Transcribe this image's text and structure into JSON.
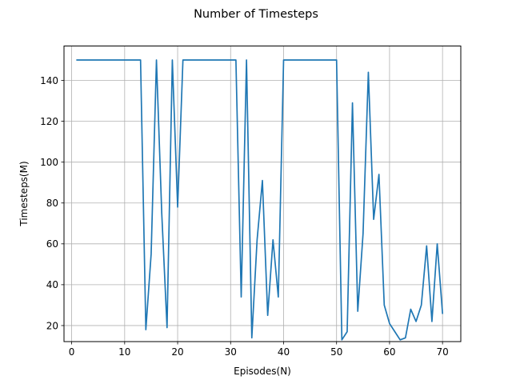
{
  "chart_data": {
    "type": "line",
    "title": "Number of Timesteps",
    "xlabel": "Episodes(N)",
    "ylabel": "Timesteps(M)",
    "xlim": [
      -1.45,
      73.45
    ],
    "ylim": [
      12.15,
      156.85
    ],
    "xticks": [
      0,
      10,
      20,
      30,
      40,
      50,
      60,
      70
    ],
    "yticks": [
      20,
      40,
      60,
      80,
      100,
      120,
      140
    ],
    "grid": true,
    "line_color": "#1f77b4",
    "series": [
      {
        "x": [
          1,
          2,
          3,
          4,
          5,
          6,
          7,
          8,
          9,
          10,
          11,
          12,
          13,
          14,
          15,
          16,
          17,
          18,
          19,
          20,
          21,
          22,
          23,
          24,
          25,
          26,
          27,
          28,
          29,
          30,
          31,
          32,
          33,
          34,
          35,
          36,
          37,
          38,
          39,
          40,
          41,
          42,
          43,
          44,
          45,
          46,
          47,
          48,
          49,
          50,
          51,
          52,
          53,
          54,
          55,
          56,
          57,
          58,
          59,
          60,
          61,
          62,
          63,
          64,
          65,
          66,
          67,
          68,
          69,
          70
        ],
        "values": [
          150,
          150,
          150,
          150,
          150,
          150,
          150,
          150,
          150,
          150,
          150,
          150,
          150,
          18,
          55,
          150,
          75,
          19,
          150,
          78,
          150,
          150,
          150,
          150,
          150,
          150,
          150,
          150,
          150,
          150,
          150,
          34,
          150,
          14,
          62,
          91,
          25,
          62,
          34,
          150,
          150,
          150,
          150,
          150,
          150,
          150,
          150,
          150,
          150,
          150,
          13,
          17,
          129,
          27,
          65,
          144,
          72,
          94,
          30,
          21,
          17,
          13,
          14,
          28,
          22,
          30,
          59,
          22,
          60,
          26
        ]
      }
    ]
  }
}
